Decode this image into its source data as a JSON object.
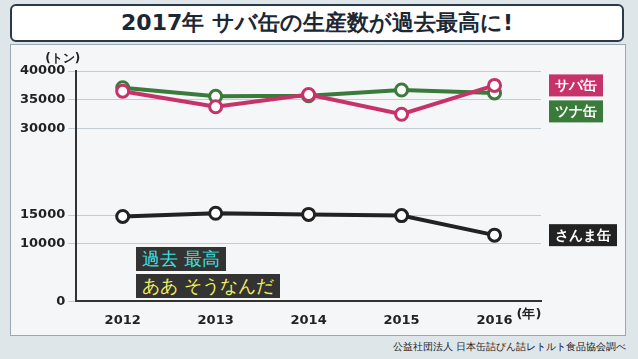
{
  "chart_data": {
    "type": "line",
    "title": "2017年 サバ缶の生産数が過去最高に!",
    "y_label": "(トン)",
    "x_label": "(年)",
    "source": "公益社団法人 日本缶詰びん詰レトルト食品協会調べ",
    "annotations": [
      "過去 最高",
      "ああ そうなんだ"
    ],
    "categories": [
      "2012",
      "2013",
      "2014",
      "2015",
      "2016"
    ],
    "series": [
      {
        "name": "サバ缶",
        "color": "#c8326a",
        "marker": "circle",
        "values": [
          36500,
          33800,
          35900,
          32500,
          37500
        ]
      },
      {
        "name": "ツナ缶",
        "color": "#3a7a3a",
        "marker": "circle",
        "values": [
          37100,
          35600,
          35700,
          36700,
          36200
        ]
      },
      {
        "name": "さんま缶",
        "color": "#222222",
        "marker": "circle",
        "values": [
          14750,
          15300,
          15100,
          14900,
          11500
        ]
      }
    ],
    "ylim": [
      0,
      40000
    ],
    "yticks": [
      0,
      10000,
      15000,
      30000,
      35000,
      40000
    ],
    "grid": true,
    "legend": "right"
  }
}
